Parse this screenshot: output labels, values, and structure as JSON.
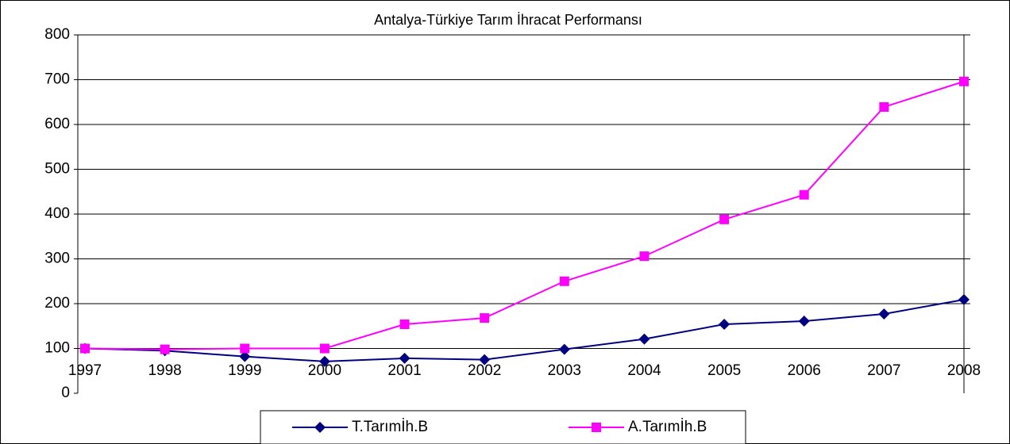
{
  "chart_data": {
    "type": "line",
    "title": "Antalya-Türkiye Tarım İhracat Performansı",
    "categories": [
      "1997",
      "1998",
      "1999",
      "2000",
      "2001",
      "2002",
      "2003",
      "2004",
      "2005",
      "2006",
      "2007",
      "2008"
    ],
    "series": [
      {
        "name": "T.Tarımİh.B",
        "color": "#000080",
        "marker": "diamond",
        "values": [
          100,
          95,
          82,
          71,
          78,
          75,
          98,
          121,
          154,
          161,
          177,
          209
        ]
      },
      {
        "name": "A.Tarımİh.B",
        "color": "#ff00ff",
        "marker": "square",
        "values": [
          100,
          98,
          100,
          100,
          154,
          168,
          250,
          306,
          388,
          443,
          639,
          696
        ]
      }
    ],
    "ylim": [
      0,
      800
    ],
    "yticks": [
      0,
      100,
      200,
      300,
      400,
      500,
      600,
      700,
      800
    ],
    "grid": true,
    "legend": "bottom"
  }
}
